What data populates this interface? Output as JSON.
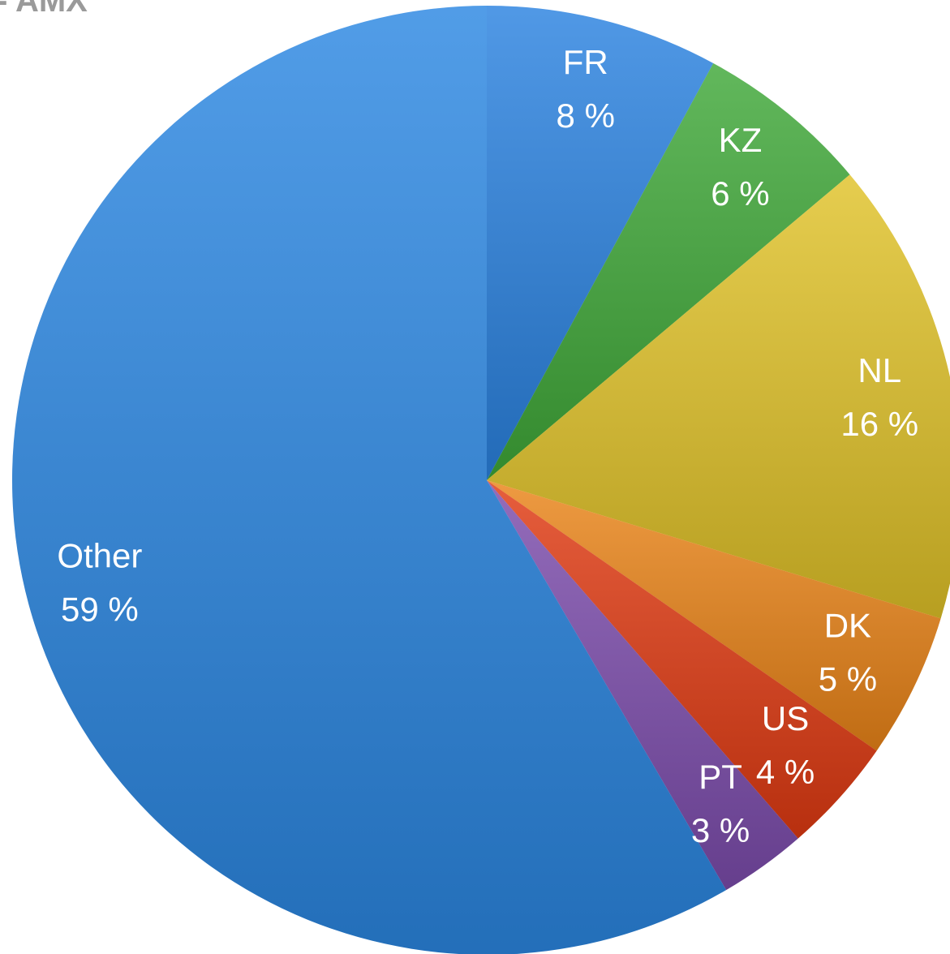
{
  "chart_data": {
    "type": "pie",
    "title": "- AMX",
    "categories": [
      "FR",
      "KZ",
      "NL",
      "DK",
      "US",
      "PT",
      "Other"
    ],
    "values": [
      8,
      6,
      16,
      5,
      4,
      3,
      59
    ],
    "value_labels": [
      "8 %",
      "6 %",
      "16 %",
      "5 %",
      "4 %",
      "3 %",
      "59 %"
    ],
    "colors": [
      "#2a82e0",
      "#3fa838",
      "#e0c228",
      "#ea8418",
      "#e03a12",
      "#7c4cac",
      "#2b87e2"
    ]
  }
}
